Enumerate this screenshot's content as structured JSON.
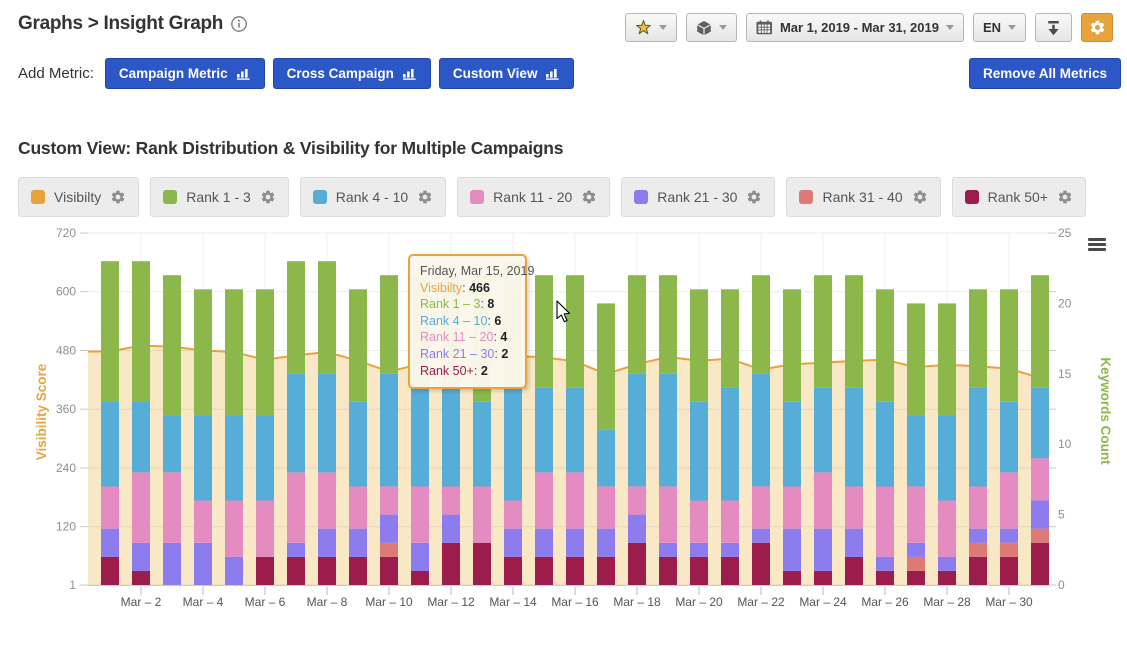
{
  "header": {
    "breadcrumb": "Graphs > Insight Graph",
    "toolbar": {
      "date_range": "Mar 1, 2019 - Mar 31, 2019",
      "language": "EN",
      "settings_color": "#e8a33d"
    }
  },
  "metric_bar": {
    "label": "Add Metric:",
    "buttons": [
      {
        "label": "Campaign Metric",
        "icon": "bar-chart-icon"
      },
      {
        "label": "Cross Campaign",
        "icon": "bar-chart-icon"
      },
      {
        "label": "Custom View",
        "icon": "bar-chart-icon"
      }
    ],
    "remove_button": "Remove All Metrics",
    "button_color": "#2c57c7"
  },
  "section_title": "Custom View: Rank Distribution & Visibility for Multiple Campaigns",
  "legend": {
    "items": [
      {
        "label": "Visibilty",
        "color": "#e8a33d"
      },
      {
        "label": "Rank 1 - 3",
        "color": "#8cb84b"
      },
      {
        "label": "Rank 4 - 10",
        "color": "#56add8"
      },
      {
        "label": "Rank 11 - 20",
        "color": "#e48cc2"
      },
      {
        "label": "Rank 21 - 30",
        "color": "#8c7cee"
      },
      {
        "label": "Rank 31 - 40",
        "color": "#dd7a77"
      },
      {
        "label": "Rank 50+",
        "color": "#9c1c4c"
      }
    ]
  },
  "chart_data": {
    "type": "bar",
    "subtype": "stacked-columns-with-area-line",
    "x_days": [
      1,
      2,
      3,
      4,
      5,
      6,
      7,
      8,
      9,
      10,
      11,
      12,
      13,
      14,
      15,
      16,
      17,
      18,
      19,
      20,
      21,
      22,
      23,
      24,
      25,
      26,
      27,
      28,
      29,
      30,
      31
    ],
    "x_tick_labels": [
      "Mar – 2",
      "Mar – 4",
      "Mar – 6",
      "Mar – 8",
      "Mar – 10",
      "Mar – 12",
      "Mar – 14",
      "Mar – 16",
      "Mar – 18",
      "Mar – 20",
      "Mar – 22",
      "Mar – 24",
      "Mar – 26",
      "Mar – 28",
      "Mar – 30"
    ],
    "left_axis": {
      "title": "Visibility Score",
      "ticks": [
        720,
        600,
        480,
        360,
        240,
        120,
        1
      ],
      "min": 1,
      "max": 720,
      "color": "#e8a33d"
    },
    "right_axis": {
      "title": "Keywords Count",
      "ticks": [
        25,
        20,
        15,
        10,
        5,
        0
      ],
      "min": 0,
      "max": 25,
      "color": "#8cb84b"
    },
    "grid": true,
    "legend_position": "top",
    "area_series": {
      "name": "Visibilty",
      "axis": "left",
      "line_color": "#e8a33d",
      "fill_color": "#f8e8c5",
      "values": [
        478,
        490,
        488,
        480,
        477,
        461,
        470,
        477,
        459,
        437,
        452,
        461,
        455,
        469,
        466,
        458,
        432,
        452,
        467,
        459,
        463,
        441,
        452,
        455,
        459,
        461,
        446,
        451,
        448,
        443,
        424
      ]
    },
    "bar_series_bottom_to_top": [
      {
        "name": "Rank 50+",
        "color": "#9c1c4c",
        "values": [
          2,
          1,
          0,
          0,
          0,
          2,
          2,
          2,
          2,
          2,
          1,
          3,
          3,
          2,
          2,
          2,
          2,
          3,
          2,
          2,
          2,
          3,
          1,
          1,
          2,
          1,
          1,
          1,
          2,
          2,
          3
        ]
      },
      {
        "name": "Rank 31 - 40",
        "color": "#dd7a77",
        "values": [
          0,
          0,
          0,
          0,
          0,
          0,
          0,
          0,
          0,
          1,
          0,
          0,
          0,
          0,
          0,
          0,
          0,
          0,
          0,
          0,
          0,
          0,
          0,
          0,
          0,
          0,
          1,
          0,
          1,
          1,
          1
        ]
      },
      {
        "name": "Rank 21 - 30",
        "color": "#8c7cee",
        "values": [
          2,
          2,
          3,
          3,
          2,
          0,
          1,
          2,
          2,
          2,
          2,
          2,
          0,
          2,
          2,
          2,
          2,
          2,
          1,
          1,
          1,
          1,
          3,
          3,
          2,
          1,
          1,
          1,
          1,
          1,
          2
        ]
      },
      {
        "name": "Rank 11 - 20",
        "color": "#e48cc2",
        "values": [
          3,
          5,
          5,
          3,
          4,
          4,
          5,
          4,
          3,
          2,
          4,
          2,
          4,
          2,
          4,
          4,
          3,
          2,
          4,
          3,
          3,
          3,
          3,
          4,
          3,
          5,
          4,
          4,
          3,
          4,
          3
        ]
      },
      {
        "name": "Rank 4 - 10",
        "color": "#56add8",
        "values": [
          6,
          5,
          4,
          6,
          6,
          6,
          7,
          7,
          6,
          8,
          7,
          7,
          6,
          8,
          6,
          6,
          4,
          8,
          8,
          7,
          8,
          8,
          6,
          6,
          7,
          6,
          5,
          6,
          7,
          5,
          5
        ]
      },
      {
        "name": "Rank 1 - 3",
        "color": "#8cb84b",
        "values": [
          10,
          10,
          10,
          9,
          9,
          9,
          8,
          8,
          8,
          7,
          8,
          8,
          9,
          9,
          8,
          8,
          9,
          7,
          7,
          8,
          7,
          7,
          8,
          8,
          8,
          8,
          8,
          8,
          7,
          8,
          8
        ]
      }
    ]
  },
  "tooltip": {
    "date": "Friday, Mar 15, 2019",
    "rows": [
      {
        "label": "Visibilty",
        "value": "466",
        "color": "#e8a33d"
      },
      {
        "label": "Rank 1 – 3",
        "value": "8",
        "color": "#8cb84b"
      },
      {
        "label": "Rank 4 – 10",
        "value": "6",
        "color": "#56add8"
      },
      {
        "label": "Rank 11 – 20",
        "value": "4",
        "color": "#e48cc2"
      },
      {
        "label": "Rank 21 – 30",
        "value": "2",
        "color": "#8c7cee"
      },
      {
        "label": "Rank 50+",
        "value": "2",
        "color": "#9c1c4c"
      }
    ]
  }
}
